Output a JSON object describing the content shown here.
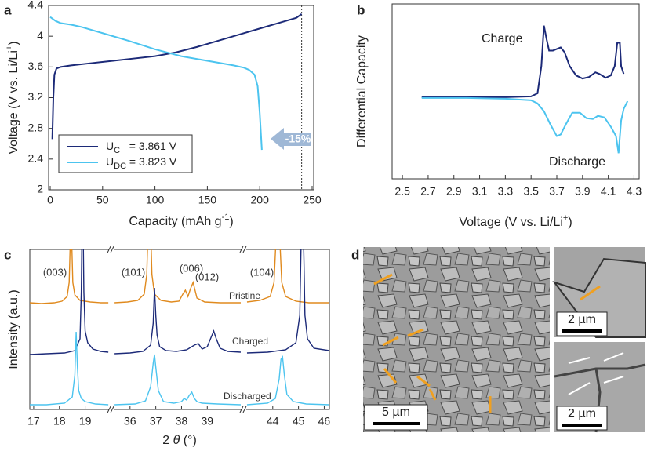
{
  "chart_data": [
    {
      "type": "line",
      "panel": "a",
      "xlabel": [
        {
          "text": "Capacity (mAh g"
        },
        {
          "text": "-1",
          "style": "sup"
        },
        {
          "text": ")"
        }
      ],
      "ylabel": [
        {
          "text": "Voltage (V vs. Li/Li"
        },
        {
          "text": "+",
          "style": "sup"
        },
        {
          "text": ")"
        }
      ],
      "xlim": [
        -1.5,
        251.5
      ],
      "ylim": [
        2,
        4.4
      ],
      "xticks": [
        0,
        50,
        100,
        150,
        200,
        250
      ],
      "yticks": [
        2,
        2.4,
        2.8,
        3.2,
        3.6,
        4,
        4.4
      ],
      "legend": "lower left",
      "vline": 240,
      "annotation": "-15%",
      "series": [
        {
          "name_parts": [
            {
              "text": "U"
            },
            {
              "text": "C",
              "style": "sub"
            },
            {
              "text": "   = 3.861 V"
            }
          ],
          "color": "#1c2a78",
          "x": [
            2,
            3,
            4,
            6,
            10,
            20,
            40,
            60,
            80,
            100,
            120,
            140,
            160,
            180,
            200,
            220,
            235,
            240
          ],
          "values": [
            2.66,
            3.2,
            3.5,
            3.58,
            3.6,
            3.62,
            3.65,
            3.68,
            3.71,
            3.74,
            3.79,
            3.86,
            3.94,
            4.02,
            4.1,
            4.18,
            4.24,
            4.29
          ]
        },
        {
          "name_parts": [
            {
              "text": "U"
            },
            {
              "text": "DC",
              "style": "sub"
            },
            {
              "text": " = 3.823 V"
            }
          ],
          "color": "#4cc4ef",
          "x": [
            0,
            5,
            10,
            20,
            30,
            50,
            75,
            100,
            125,
            150,
            175,
            185,
            190,
            195,
            198,
            200,
            202
          ],
          "values": [
            4.25,
            4.2,
            4.17,
            4.15,
            4.12,
            4.04,
            3.94,
            3.83,
            3.74,
            3.68,
            3.62,
            3.59,
            3.56,
            3.5,
            3.35,
            3.0,
            2.52
          ]
        }
      ]
    },
    {
      "type": "line",
      "panel": "b",
      "xlabel": [
        {
          "text": "Voltage (V vs. Li/Li"
        },
        {
          "text": "+",
          "style": "sup"
        },
        {
          "text": ")"
        }
      ],
      "ylabel": [
        {
          "text": "Differential Capacity"
        }
      ],
      "xlim": [
        2.42,
        4.34
      ],
      "ylim": [
        -1.05,
        1.2
      ],
      "xticks": [
        2.5,
        2.7,
        2.9,
        3.1,
        3.3,
        3.5,
        3.7,
        3.9,
        4.1,
        4.3
      ],
      "charge_label": "Charge",
      "discharge_label": "Discharge",
      "series": [
        {
          "color": "#1c2a78",
          "x": [
            2.65,
            3.0,
            3.3,
            3.5,
            3.55,
            3.58,
            3.6,
            3.62,
            3.64,
            3.67,
            3.7,
            3.73,
            3.76,
            3.8,
            3.85,
            3.9,
            3.95,
            4.0,
            4.03,
            4.08,
            4.12,
            4.15,
            4.17,
            4.19,
            4.2,
            4.22
          ],
          "values": [
            0,
            0,
            0,
            0.01,
            0.05,
            0.4,
            0.92,
            0.75,
            0.6,
            0.6,
            0.62,
            0.64,
            0.58,
            0.4,
            0.28,
            0.24,
            0.26,
            0.32,
            0.3,
            0.25,
            0.28,
            0.4,
            0.7,
            0.7,
            0.4,
            0.3
          ]
        },
        {
          "color": "#4cc4ef",
          "x": [
            2.65,
            3.0,
            3.3,
            3.5,
            3.55,
            3.6,
            3.65,
            3.7,
            3.73,
            3.77,
            3.82,
            3.88,
            3.93,
            3.98,
            4.02,
            4.07,
            4.12,
            4.16,
            4.18,
            4.2,
            4.22,
            4.25
          ],
          "values": [
            -0.01,
            -0.01,
            -0.02,
            -0.04,
            -0.08,
            -0.18,
            -0.35,
            -0.5,
            -0.48,
            -0.35,
            -0.2,
            -0.2,
            -0.27,
            -0.28,
            -0.24,
            -0.26,
            -0.38,
            -0.5,
            -0.72,
            -0.3,
            -0.15,
            -0.05
          ]
        }
      ]
    },
    {
      "type": "line",
      "panel": "c",
      "xlabel": [
        {
          "text": "2 "
        },
        {
          "text": "θ",
          "style": "italic"
        },
        {
          "text": " (°)"
        }
      ],
      "ylabel": [
        {
          "text": "Intensity (a.u.)"
        }
      ],
      "peak_labels": [
        "(003)",
        "(101)",
        "(006)",
        "(012)",
        "(104)"
      ],
      "segments": [
        {
          "xlim": [
            16.85,
            19.9
          ],
          "xticks": [
            17,
            18,
            19
          ]
        },
        {
          "xlim": [
            35.4,
            40.3
          ],
          "xticks": [
            36,
            37,
            38,
            39
          ]
        },
        {
          "xlim": [
            43.0,
            46.2
          ],
          "xticks": [
            44,
            45,
            46
          ]
        }
      ],
      "series": [
        {
          "name": "Pristine",
          "color": "#e08a1e",
          "segments": [
            {
              "x": [
                16.85,
                17.3,
                17.8,
                18.1,
                18.3,
                18.38,
                18.42,
                18.45,
                18.48,
                18.52,
                18.6,
                18.8,
                19.2,
                19.6,
                19.9
              ],
              "values": [
                0.04,
                0.03,
                0.04,
                0.06,
                0.12,
                0.3,
                0.8,
                2.0,
                0.8,
                0.3,
                0.14,
                0.07,
                0.05,
                0.04,
                0.04
              ]
            },
            {
              "x": [
                35.4,
                35.9,
                36.3,
                36.55,
                36.65,
                36.7,
                36.75,
                36.8,
                36.85,
                36.95,
                37.2,
                37.6,
                37.9,
                38.05,
                38.15,
                38.25,
                38.35,
                38.45,
                38.6,
                38.9,
                39.5,
                40.3
              ],
              "values": [
                0.04,
                0.05,
                0.07,
                0.15,
                0.4,
                1.0,
                2.0,
                1.0,
                0.4,
                0.15,
                0.07,
                0.05,
                0.06,
                0.15,
                0.2,
                0.12,
                0.22,
                0.3,
                0.1,
                0.05,
                0.04,
                0.04
              ]
            },
            {
              "x": [
                43.0,
                43.5,
                43.9,
                44.05,
                44.12,
                44.16,
                44.2,
                44.24,
                44.28,
                44.35,
                44.5,
                44.9,
                45.4,
                46.2
              ],
              "values": [
                0.05,
                0.07,
                0.12,
                0.3,
                0.8,
                1.5,
                2.0,
                1.5,
                0.8,
                0.3,
                0.12,
                0.06,
                0.04,
                0.04
              ]
            }
          ]
        },
        {
          "name": "Charged",
          "color": "#1c2a78",
          "segments": [
            {
              "x": [
                16.85,
                17.5,
                18.2,
                18.6,
                18.8,
                18.85,
                18.9,
                18.95,
                19.0,
                19.1,
                19.3,
                19.6,
                19.9
              ],
              "values": [
                0,
                0.01,
                0.02,
                0.05,
                0.2,
                0.8,
                2.2,
                0.8,
                0.3,
                0.15,
                0.07,
                0.04,
                0.03
              ]
            },
            {
              "x": [
                35.4,
                36.0,
                36.5,
                36.8,
                36.9,
                36.95,
                37.0,
                37.05,
                37.15,
                37.4,
                37.8,
                38.2,
                38.5,
                38.65,
                38.8,
                39.0,
                39.15,
                39.25,
                39.35,
                39.5,
                39.8,
                40.3
              ],
              "values": [
                0.01,
                0.02,
                0.04,
                0.12,
                0.4,
                0.85,
                0.5,
                0.25,
                0.1,
                0.05,
                0.04,
                0.06,
                0.12,
                0.14,
                0.07,
                0.1,
                0.22,
                0.3,
                0.2,
                0.08,
                0.04,
                0.03
              ]
            },
            {
              "x": [
                43.0,
                43.8,
                44.5,
                44.9,
                45.05,
                45.1,
                45.15,
                45.2,
                45.25,
                45.35,
                45.6,
                46.2
              ],
              "values": [
                0.02,
                0.03,
                0.06,
                0.15,
                0.5,
                1.4,
                2.2,
                1.4,
                0.5,
                0.2,
                0.08,
                0.05
              ]
            }
          ]
        },
        {
          "name": "Discharged",
          "color": "#4cc4ef",
          "segments": [
            {
              "x": [
                16.85,
                17.5,
                18.2,
                18.5,
                18.6,
                18.65,
                18.7,
                18.75,
                18.85,
                19.0,
                19.4,
                19.9
              ],
              "values": [
                0.02,
                0.02,
                0.04,
                0.12,
                0.4,
                0.95,
                0.5,
                0.2,
                0.1,
                0.06,
                0.03,
                0.02
              ]
            },
            {
              "x": [
                35.4,
                36.2,
                36.6,
                36.8,
                36.9,
                36.95,
                37.0,
                37.1,
                37.3,
                37.7,
                38.0,
                38.1,
                38.2,
                38.3,
                38.4,
                38.5,
                38.6,
                38.8,
                39.4,
                40.3
              ],
              "values": [
                0.02,
                0.03,
                0.07,
                0.25,
                0.55,
                0.66,
                0.5,
                0.2,
                0.06,
                0.04,
                0.06,
                0.1,
                0.08,
                0.14,
                0.18,
                0.1,
                0.06,
                0.04,
                0.03,
                0.02
              ]
            },
            {
              "x": [
                43.0,
                43.8,
                44.1,
                44.25,
                44.32,
                44.38,
                44.45,
                44.55,
                44.8,
                45.3,
                46.2
              ],
              "values": [
                0.02,
                0.04,
                0.1,
                0.35,
                0.6,
                0.63,
                0.4,
                0.15,
                0.06,
                0.03,
                0.02
              ]
            }
          ]
        }
      ]
    }
  ],
  "images": {
    "panel": "d",
    "scale_bars": [
      "5 µm",
      "2 µm",
      "2 µm"
    ]
  }
}
